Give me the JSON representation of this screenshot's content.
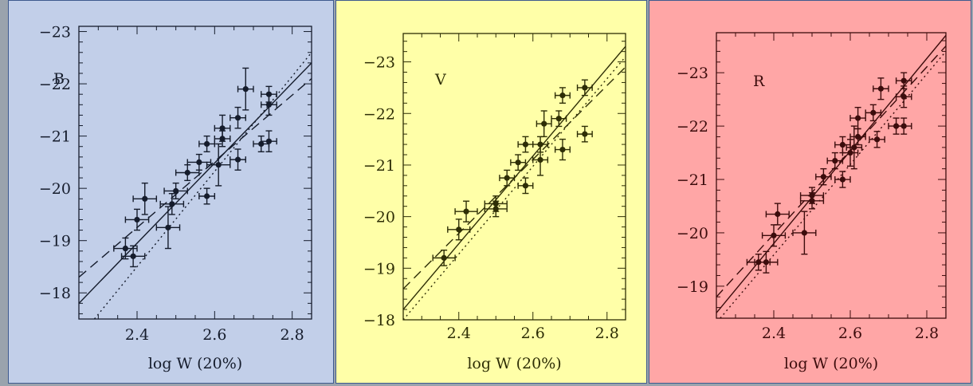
{
  "chart_data": [
    {
      "type": "scatter",
      "band_label": "B",
      "xlabel": "log W (20%)",
      "ylabel": "",
      "xlim": [
        2.25,
        2.85
      ],
      "ylim": [
        -17.5,
        -23.1
      ],
      "x_ticks": [
        2.4,
        2.6,
        2.8
      ],
      "y_ticks": [
        -18,
        -19,
        -20,
        -21,
        -22,
        -23
      ],
      "background": "#c2cfe9",
      "ink": "#151c2c",
      "points": [
        {
          "x": 2.37,
          "y": -18.85,
          "xerr": 0.03,
          "yerr": 0.2
        },
        {
          "x": 2.39,
          "y": -18.7,
          "xerr": 0.03,
          "yerr": 0.2
        },
        {
          "x": 2.4,
          "y": -19.4,
          "xerr": 0.03,
          "yerr": 0.2
        },
        {
          "x": 2.42,
          "y": -19.8,
          "xerr": 0.03,
          "yerr": 0.3
        },
        {
          "x": 2.48,
          "y": -19.25,
          "xerr": 0.03,
          "yerr": 0.4
        },
        {
          "x": 2.49,
          "y": -19.7,
          "xerr": 0.03,
          "yerr": 0.2
        },
        {
          "x": 2.5,
          "y": -19.95,
          "xerr": 0.03,
          "yerr": 0.15
        },
        {
          "x": 2.53,
          "y": -20.3,
          "xerr": 0.03,
          "yerr": 0.15
        },
        {
          "x": 2.56,
          "y": -20.5,
          "xerr": 0.03,
          "yerr": 0.15
        },
        {
          "x": 2.58,
          "y": -20.85,
          "xerr": 0.02,
          "yerr": 0.15
        },
        {
          "x": 2.58,
          "y": -19.85,
          "xerr": 0.02,
          "yerr": 0.15
        },
        {
          "x": 2.61,
          "y": -20.45,
          "xerr": 0.03,
          "yerr": 0.4
        },
        {
          "x": 2.62,
          "y": -21.15,
          "xerr": 0.02,
          "yerr": 0.25
        },
        {
          "x": 2.62,
          "y": -20.95,
          "xerr": 0.02,
          "yerr": 0.15
        },
        {
          "x": 2.66,
          "y": -21.35,
          "xerr": 0.02,
          "yerr": 0.2
        },
        {
          "x": 2.66,
          "y": -20.55,
          "xerr": 0.02,
          "yerr": 0.2
        },
        {
          "x": 2.68,
          "y": -21.9,
          "xerr": 0.02,
          "yerr": 0.4
        },
        {
          "x": 2.72,
          "y": -20.85,
          "xerr": 0.02,
          "yerr": 0.15
        },
        {
          "x": 2.74,
          "y": -20.9,
          "xerr": 0.02,
          "yerr": 0.2
        },
        {
          "x": 2.74,
          "y": -21.8,
          "xerr": 0.02,
          "yerr": 0.15
        },
        {
          "x": 2.74,
          "y": -21.6,
          "xerr": 0.02,
          "yerr": 0.2
        }
      ],
      "lines": [
        {
          "style": "solid",
          "x": [
            2.25,
            2.85
          ],
          "y": [
            -17.8,
            -22.4
          ]
        },
        {
          "style": "dashed",
          "x": [
            2.25,
            2.85
          ],
          "y": [
            -18.3,
            -22.1
          ]
        },
        {
          "style": "dotted",
          "x": [
            2.29,
            2.85
          ],
          "y": [
            -17.5,
            -22.6
          ]
        }
      ]
    },
    {
      "type": "scatter",
      "band_label": "V",
      "xlabel": "log W (20%)",
      "ylabel": "",
      "xlim": [
        2.25,
        2.85
      ],
      "ylim": [
        -18.0,
        -23.55
      ],
      "x_ticks": [
        2.4,
        2.6,
        2.8
      ],
      "y_ticks": [
        -18,
        -19,
        -20,
        -21,
        -22,
        -23
      ],
      "background": "#ffffa8",
      "ink": "#2e2e06",
      "points": [
        {
          "x": 2.36,
          "y": -19.2,
          "xerr": 0.03,
          "yerr": 0.15
        },
        {
          "x": 2.4,
          "y": -19.75,
          "xerr": 0.03,
          "yerr": 0.2
        },
        {
          "x": 2.42,
          "y": -20.1,
          "xerr": 0.03,
          "yerr": 0.2
        },
        {
          "x": 2.5,
          "y": -20.15,
          "xerr": 0.03,
          "yerr": 0.15
        },
        {
          "x": 2.5,
          "y": -20.25,
          "xerr": 0.03,
          "yerr": 0.15
        },
        {
          "x": 2.53,
          "y": -20.75,
          "xerr": 0.02,
          "yerr": 0.15
        },
        {
          "x": 2.56,
          "y": -21.05,
          "xerr": 0.02,
          "yerr": 0.15
        },
        {
          "x": 2.58,
          "y": -20.6,
          "xerr": 0.02,
          "yerr": 0.15
        },
        {
          "x": 2.58,
          "y": -21.4,
          "xerr": 0.02,
          "yerr": 0.15
        },
        {
          "x": 2.62,
          "y": -21.1,
          "xerr": 0.02,
          "yerr": 0.3
        },
        {
          "x": 2.62,
          "y": -21.4,
          "xerr": 0.02,
          "yerr": 0.15
        },
        {
          "x": 2.63,
          "y": -21.8,
          "xerr": 0.02,
          "yerr": 0.25
        },
        {
          "x": 2.67,
          "y": -21.9,
          "xerr": 0.02,
          "yerr": 0.15
        },
        {
          "x": 2.68,
          "y": -21.3,
          "xerr": 0.02,
          "yerr": 0.2
        },
        {
          "x": 2.68,
          "y": -22.35,
          "xerr": 0.02,
          "yerr": 0.15
        },
        {
          "x": 2.74,
          "y": -22.5,
          "xerr": 0.02,
          "yerr": 0.15
        },
        {
          "x": 2.74,
          "y": -21.6,
          "xerr": 0.02,
          "yerr": 0.15
        }
      ],
      "lines": [
        {
          "style": "solid",
          "x": [
            2.25,
            2.85
          ],
          "y": [
            -18.2,
            -23.3
          ]
        },
        {
          "style": "dashed",
          "x": [
            2.25,
            2.85
          ],
          "y": [
            -18.6,
            -22.9
          ]
        },
        {
          "style": "dotted",
          "x": [
            2.25,
            2.85
          ],
          "y": [
            -18.0,
            -23.1
          ]
        }
      ]
    },
    {
      "type": "scatter",
      "band_label": "R",
      "xlabel": "log W (20%)",
      "ylabel": "",
      "xlim": [
        2.25,
        2.85
      ],
      "ylim": [
        -18.4,
        -23.75
      ],
      "x_ticks": [
        2.4,
        2.6,
        2.8
      ],
      "y_ticks": [
        -19,
        -20,
        -21,
        -22,
        -23
      ],
      "background": "#ffa6a6",
      "ink": "#3c0c0c",
      "points": [
        {
          "x": 2.36,
          "y": -19.45,
          "xerr": 0.03,
          "yerr": 0.15
        },
        {
          "x": 2.38,
          "y": -19.45,
          "xerr": 0.03,
          "yerr": 0.2
        },
        {
          "x": 2.4,
          "y": -19.95,
          "xerr": 0.03,
          "yerr": 0.2
        },
        {
          "x": 2.41,
          "y": -20.35,
          "xerr": 0.03,
          "yerr": 0.2
        },
        {
          "x": 2.48,
          "y": -20.0,
          "xerr": 0.03,
          "yerr": 0.4
        },
        {
          "x": 2.5,
          "y": -20.6,
          "xerr": 0.03,
          "yerr": 0.15
        },
        {
          "x": 2.5,
          "y": -20.7,
          "xerr": 0.03,
          "yerr": 0.15
        },
        {
          "x": 2.53,
          "y": -21.05,
          "xerr": 0.02,
          "yerr": 0.15
        },
        {
          "x": 2.56,
          "y": -21.35,
          "xerr": 0.02,
          "yerr": 0.15
        },
        {
          "x": 2.58,
          "y": -21.0,
          "xerr": 0.02,
          "yerr": 0.15
        },
        {
          "x": 2.58,
          "y": -21.65,
          "xerr": 0.02,
          "yerr": 0.15
        },
        {
          "x": 2.6,
          "y": -21.5,
          "xerr": 0.02,
          "yerr": 0.25
        },
        {
          "x": 2.61,
          "y": -21.6,
          "xerr": 0.02,
          "yerr": 0.4
        },
        {
          "x": 2.62,
          "y": -21.8,
          "xerr": 0.02,
          "yerr": 0.15
        },
        {
          "x": 2.62,
          "y": -22.15,
          "xerr": 0.02,
          "yerr": 0.2
        },
        {
          "x": 2.66,
          "y": -22.25,
          "xerr": 0.02,
          "yerr": 0.15
        },
        {
          "x": 2.67,
          "y": -21.75,
          "xerr": 0.02,
          "yerr": 0.15
        },
        {
          "x": 2.68,
          "y": -22.7,
          "xerr": 0.02,
          "yerr": 0.2
        },
        {
          "x": 2.72,
          "y": -22.0,
          "xerr": 0.02,
          "yerr": 0.15
        },
        {
          "x": 2.74,
          "y": -22.0,
          "xerr": 0.02,
          "yerr": 0.15
        },
        {
          "x": 2.74,
          "y": -22.55,
          "xerr": 0.02,
          "yerr": 0.2
        },
        {
          "x": 2.74,
          "y": -22.85,
          "xerr": 0.02,
          "yerr": 0.15
        }
      ],
      "lines": [
        {
          "style": "solid",
          "x": [
            2.25,
            2.85
          ],
          "y": [
            -18.5,
            -23.7
          ]
        },
        {
          "style": "dashed",
          "x": [
            2.25,
            2.85
          ],
          "y": [
            -18.8,
            -23.5
          ]
        },
        {
          "style": "dotted",
          "x": [
            2.26,
            2.85
          ],
          "y": [
            -18.4,
            -23.4
          ]
        }
      ]
    }
  ]
}
